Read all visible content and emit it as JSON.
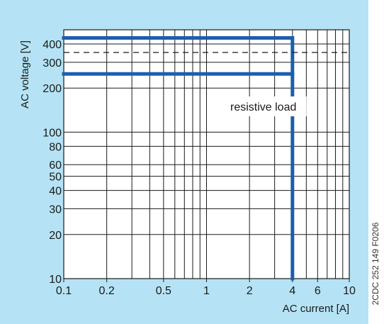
{
  "chart_data": {
    "type": "line",
    "title": "",
    "xlabel": "AC current [A]",
    "ylabel": "AC voltage [V]",
    "x_scale": "log",
    "y_scale": "log",
    "xlim": [
      0.1,
      10
    ],
    "ylim": [
      10,
      500
    ],
    "grid": true,
    "x_ticks": [
      0.1,
      0.2,
      0.5,
      1,
      2,
      4,
      6,
      10
    ],
    "x_tick_labels": [
      "0.1",
      "0.2",
      "0.5",
      "1",
      "2",
      "4",
      "6",
      "10"
    ],
    "y_ticks": [
      10,
      20,
      30,
      40,
      50,
      60,
      80,
      100,
      200,
      300,
      400
    ],
    "y_tick_labels": [
      "10",
      "20",
      "30",
      "40",
      "50",
      "60",
      "80",
      "100",
      "200",
      "300",
      "400"
    ],
    "series": [
      {
        "x": [
          0.1,
          4,
          4
        ],
        "y": [
          250,
          250,
          10
        ]
      },
      {
        "x": [
          0.1,
          4,
          4
        ],
        "y": [
          440,
          440,
          250
        ]
      },
      {
        "x": [
          0.1,
          10
        ],
        "y": [
          350,
          350
        ],
        "style": "dashed"
      }
    ],
    "annotations": [
      {
        "text": "resistive load",
        "x": 2.5,
        "y": 150
      }
    ],
    "image_code": "2CDC 252 149 F0206",
    "colors": {
      "background": "#b5e3f5",
      "plot": "#ffffff",
      "series": "#1b5fae",
      "grid": "#1a1a1a"
    }
  }
}
